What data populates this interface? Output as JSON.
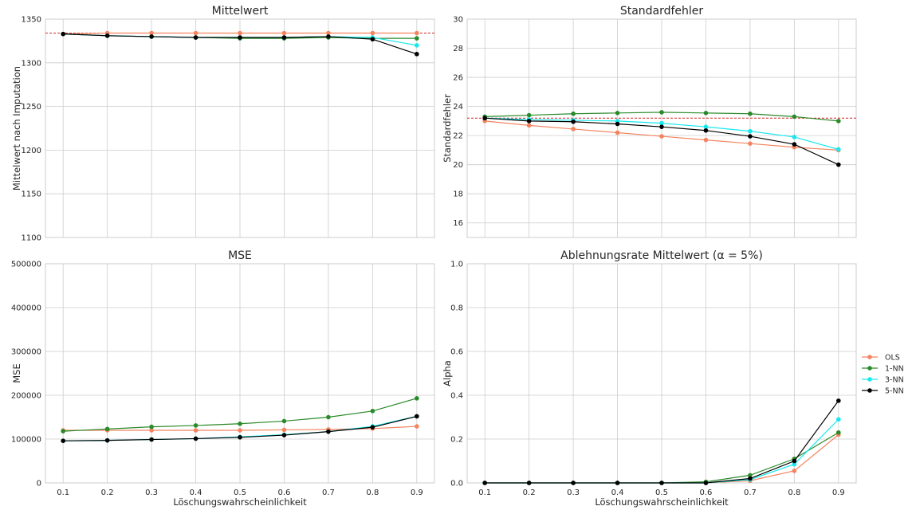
{
  "colors": {
    "grid": "#cccccc",
    "axes_edge": "#cccccc",
    "text": "#262626",
    "reference_line": "#d62728"
  },
  "legend": {
    "placement": "right",
    "entries": [
      "OLS",
      "1-NN",
      "3-NN",
      "5-NN"
    ]
  },
  "chart_data": [
    {
      "type": "line",
      "title": "Mittelwert",
      "xlabel": "",
      "ylabel": "Mittelwert nach Imputation",
      "x": [
        0.1,
        0.2,
        0.3,
        0.4,
        0.5,
        0.6,
        0.7,
        0.8,
        0.9
      ],
      "xticks_visible": false,
      "ylim": [
        1100,
        1350
      ],
      "yticks": [
        "1100",
        "1150",
        "1200",
        "1250",
        "1300",
        "1350"
      ],
      "grid": true,
      "reference_line": {
        "y": 1334,
        "style": "dashed",
        "color": "#d62728"
      },
      "series": [
        {
          "name": "OLS",
          "color": "#f4845f",
          "values": [
            1333,
            1334,
            1334,
            1334,
            1334,
            1334,
            1334,
            1334,
            1334
          ]
        },
        {
          "name": "1-NN",
          "color": "#2a8a2a",
          "values": [
            1333,
            1331,
            1330,
            1329,
            1328,
            1328,
            1329,
            1328,
            1328
          ]
        },
        {
          "name": "3-NN",
          "color": "#17e8ee",
          "values": [
            1333,
            1331,
            1330,
            1329,
            1329,
            1329,
            1330,
            1329,
            1320
          ]
        },
        {
          "name": "5-NN",
          "color": "#000000",
          "values": [
            1333,
            1331,
            1330,
            1329,
            1329,
            1329,
            1330,
            1327,
            1310
          ]
        }
      ]
    },
    {
      "type": "line",
      "title": "Standardfehler",
      "xlabel": "",
      "ylabel": "Standardfehler",
      "x": [
        0.1,
        0.2,
        0.3,
        0.4,
        0.5,
        0.6,
        0.7,
        0.8,
        0.9
      ],
      "xticks_visible": false,
      "ylim": [
        15,
        30
      ],
      "yticks": [
        "16",
        "18",
        "20",
        "22",
        "24",
        "26",
        "28",
        "30"
      ],
      "grid": true,
      "reference_line": {
        "y": 23.2,
        "style": "dashed",
        "color": "#d62728"
      },
      "series": [
        {
          "name": "OLS",
          "color": "#f4845f",
          "values": [
            23.0,
            22.7,
            22.45,
            22.2,
            21.95,
            21.7,
            21.45,
            21.2,
            21.0
          ]
        },
        {
          "name": "1-NN",
          "color": "#2a8a2a",
          "values": [
            23.3,
            23.4,
            23.5,
            23.55,
            23.6,
            23.55,
            23.5,
            23.3,
            23.0
          ]
        },
        {
          "name": "3-NN",
          "color": "#17e8ee",
          "values": [
            23.2,
            23.1,
            23.05,
            23.0,
            22.85,
            22.6,
            22.3,
            21.9,
            21.05
          ]
        },
        {
          "name": "5-NN",
          "color": "#000000",
          "values": [
            23.2,
            23.0,
            22.95,
            22.8,
            22.6,
            22.35,
            21.95,
            21.4,
            20.0
          ]
        }
      ]
    },
    {
      "type": "line",
      "title": "MSE",
      "xlabel": "Löschungswahrscheinlichkeit",
      "ylabel": "MSE",
      "x": [
        0.1,
        0.2,
        0.3,
        0.4,
        0.5,
        0.6,
        0.7,
        0.8,
        0.9
      ],
      "xticks": [
        "0.1",
        "0.2",
        "0.3",
        "0.4",
        "0.5",
        "0.6",
        "0.7",
        "0.8",
        "0.9"
      ],
      "ylim": [
        0,
        500000
      ],
      "yticks": [
        "0",
        "100000",
        "200000",
        "300000",
        "400000",
        "500000"
      ],
      "grid": true,
      "series": [
        {
          "name": "OLS",
          "color": "#f4845f",
          "values": [
            120000,
            120000,
            120000,
            120000,
            120000,
            121000,
            122000,
            124000,
            129000
          ]
        },
        {
          "name": "1-NN",
          "color": "#2a8a2a",
          "values": [
            118000,
            123000,
            128000,
            131000,
            135000,
            141000,
            150000,
            164000,
            193000
          ]
        },
        {
          "name": "3-NN",
          "color": "#17e8ee",
          "values": [
            96000,
            97000,
            99000,
            101000,
            105000,
            110000,
            117000,
            129000,
            152000
          ]
        },
        {
          "name": "5-NN",
          "color": "#000000",
          "values": [
            96000,
            97000,
            99000,
            101000,
            104000,
            109000,
            117000,
            127000,
            152000
          ]
        }
      ]
    },
    {
      "type": "line",
      "title": "Ablehnungsrate Mittelwert (α = 5%)",
      "xlabel": "Löschungswahrscheinlichkeit",
      "ylabel": "Alpha",
      "x": [
        0.1,
        0.2,
        0.3,
        0.4,
        0.5,
        0.6,
        0.7,
        0.8,
        0.9
      ],
      "xticks": [
        "0.1",
        "0.2",
        "0.3",
        "0.4",
        "0.5",
        "0.6",
        "0.7",
        "0.8",
        "0.9"
      ],
      "ylim": [
        0,
        1
      ],
      "yticks": [
        "0.0",
        "0.2",
        "0.4",
        "0.6",
        "0.8",
        "1.0"
      ],
      "grid": true,
      "series": [
        {
          "name": "OLS",
          "color": "#f4845f",
          "values": [
            0,
            0,
            0,
            0,
            0,
            0,
            0.01,
            0.055,
            0.22
          ]
        },
        {
          "name": "1-NN",
          "color": "#2a8a2a",
          "values": [
            0,
            0,
            0,
            0,
            0,
            0.005,
            0.035,
            0.11,
            0.23
          ]
        },
        {
          "name": "3-NN",
          "color": "#17e8ee",
          "values": [
            0,
            0,
            0,
            0,
            0,
            0,
            0.015,
            0.085,
            0.29
          ]
        },
        {
          "name": "5-NN",
          "color": "#000000",
          "values": [
            0,
            0,
            0,
            0,
            0,
            0,
            0.02,
            0.1,
            0.375
          ]
        }
      ]
    }
  ]
}
